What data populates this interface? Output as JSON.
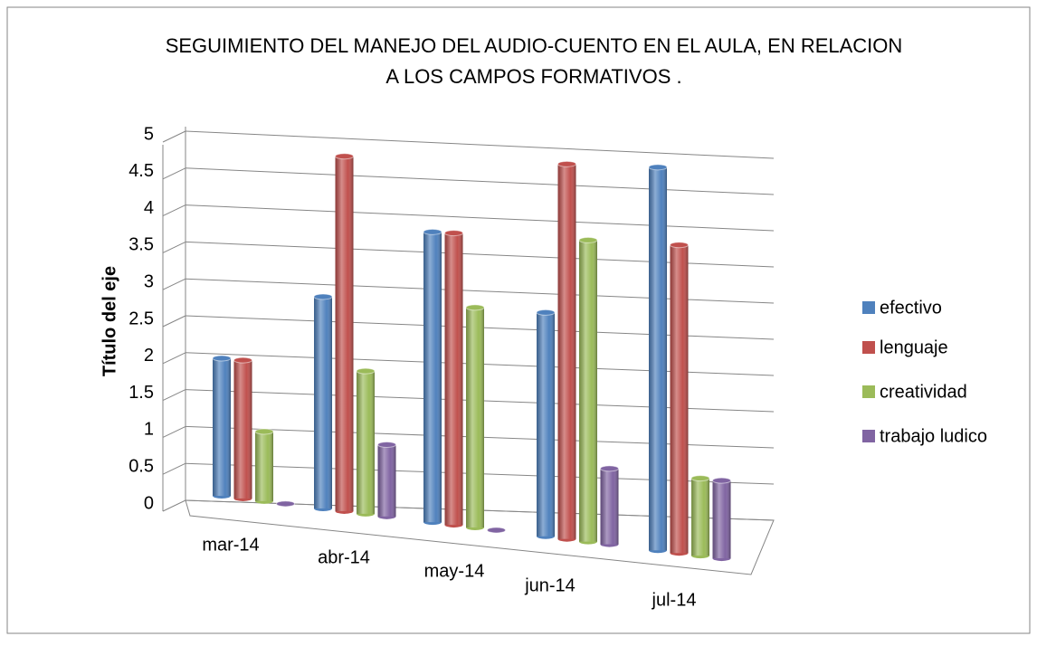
{
  "chart_data": {
    "type": "bar3d",
    "title": [
      "SEGUIMIENTO DEL MANEJO DEL AUDIO-CUENTO EN EL AULA, EN RELACION",
      "A LOS CAMPOS FORMATIVOS ."
    ],
    "y_label": "Título del eje",
    "categories": [
      "mar-14",
      "abr-14",
      "may-14",
      "jun-14",
      "jul-14"
    ],
    "series": [
      {
        "name": "efectivo",
        "color": "#4f81bd",
        "values": [
          2,
          3,
          4,
          3,
          5
        ]
      },
      {
        "name": "lenguaje",
        "color": "#c0504d",
        "values": [
          2,
          5,
          4,
          5,
          4
        ]
      },
      {
        "name": "creatividad",
        "color": "#9bbb59",
        "values": [
          1,
          2,
          3,
          4,
          1
        ]
      },
      {
        "name": "trabajo ludico",
        "color": "#8064a2",
        "values": [
          0,
          1,
          0,
          1,
          1
        ]
      }
    ],
    "ylim": [
      0,
      5
    ],
    "yticks": [
      0,
      0.5,
      1,
      1.5,
      2,
      2.5,
      3,
      3.5,
      4,
      4.5,
      5
    ],
    "grid": true,
    "legend": "right"
  }
}
